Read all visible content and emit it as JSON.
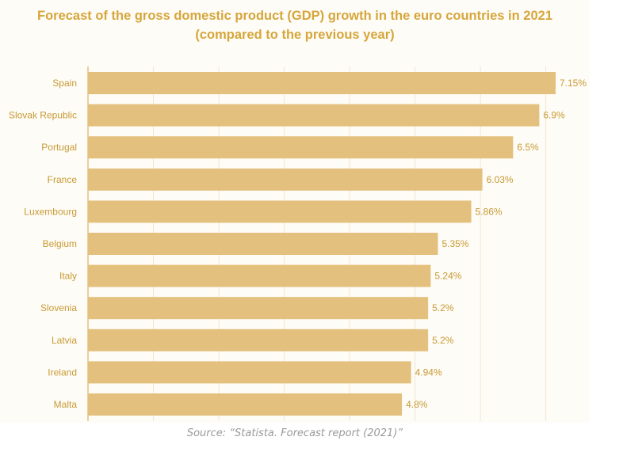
{
  "chart_data": {
    "type": "bar",
    "orientation": "horizontal",
    "title": "Forecast of the gross domestic product (GDP) growth in the euro countries in 2021",
    "subtitle": "(compared to the previous year)",
    "categories": [
      "Spain",
      "Slovak Republic",
      "Portugal",
      "France",
      "Luxembourg",
      "Belgium",
      "Italy",
      "Slovenia",
      "Latvia",
      "Ireland",
      "Malta"
    ],
    "values": [
      7.15,
      6.9,
      6.5,
      6.03,
      5.86,
      5.35,
      5.24,
      5.2,
      5.2,
      4.94,
      4.8
    ],
    "data_labels": [
      "7.15%",
      "6.9%",
      "6.5%",
      "6.03%",
      "5.86%",
      "5.35%",
      "5.24%",
      "5.2%",
      "5.2%",
      "4.94%",
      "4.8%"
    ],
    "xlim": [
      0,
      7.5
    ],
    "grid": true,
    "bar_color": "#e3c07d",
    "label_color": "#c79a35",
    "grid_color": "#efe6d2"
  },
  "source": "Source: “Statista. Forecast report (2021)”"
}
